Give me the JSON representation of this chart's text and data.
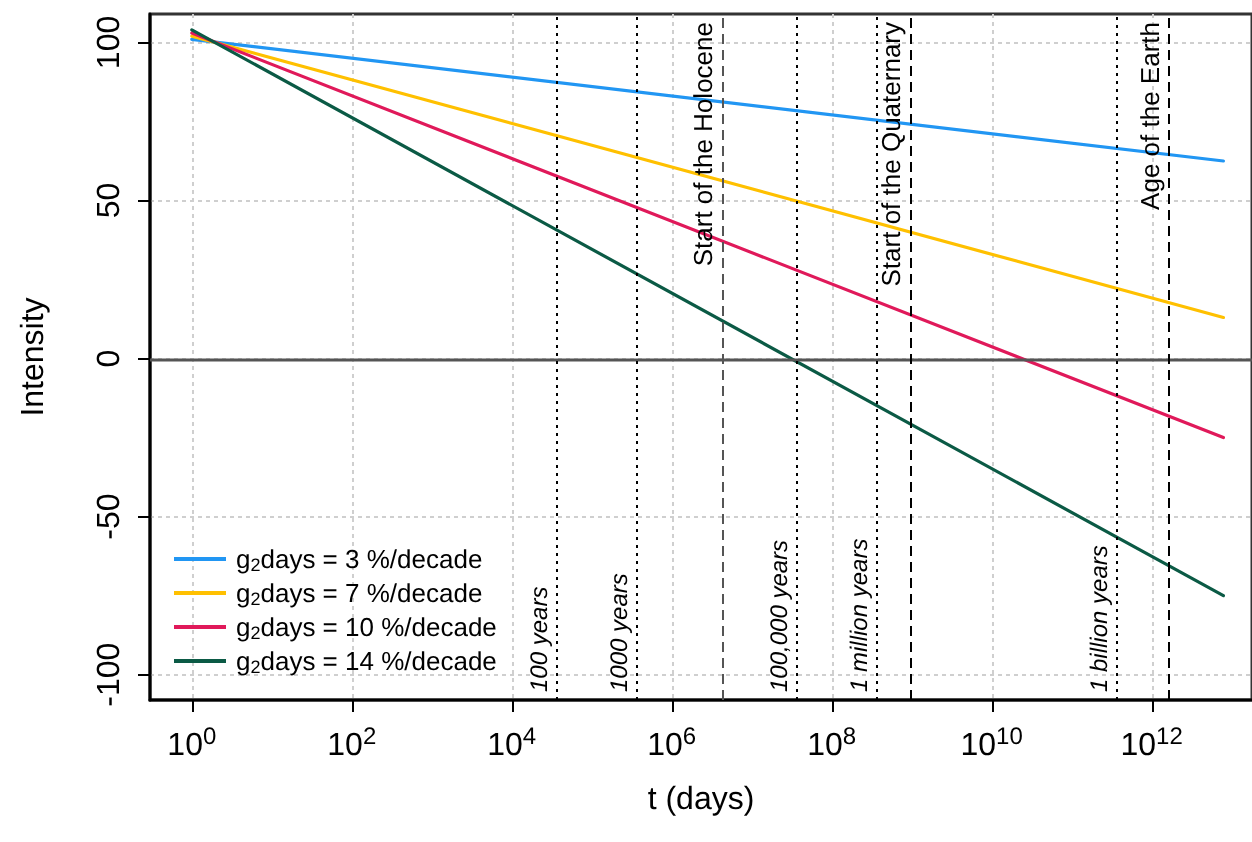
{
  "chart_data": {
    "type": "line",
    "xlabel": "t (days)",
    "ylabel": "Intensity",
    "log": "x",
    "x": [
      1,
      7900000000000.0
    ],
    "series": [
      {
        "name": "g$_{2}$days = 3 %/decade",
        "color": "#2196f3",
        "values": [
          101,
          62.5
        ]
      },
      {
        "name": "g$_{2}$days = 7 %/decade",
        "color": "#ffc000",
        "values": [
          102,
          13
        ]
      },
      {
        "name": "g$_{2}$days = 10 %/decade",
        "color": "#e0195a",
        "values": [
          103,
          -25
        ]
      },
      {
        "name": "g$_{2}$days = 14 %/decade",
        "color": "#0b5a45",
        "values": [
          104,
          -75
        ]
      }
    ],
    "xlim": [
      0.3,
      18000000000000.0
    ],
    "xticks": [
      {
        "value": 1,
        "label": "10$^{0}$"
      },
      {
        "value": 100,
        "label": "10$^{2}$"
      },
      {
        "value": 10000,
        "label": "10$^{4}$"
      },
      {
        "value": 1000000,
        "label": "10$^{6}$"
      },
      {
        "value": 100000000,
        "label": "10$^{8}$"
      },
      {
        "value": 10000000000,
        "label": "10$^{10}$"
      },
      {
        "value": 1000000000000,
        "label": "10$^{12}$"
      }
    ],
    "ylim": [
      -108,
      109
    ],
    "yticks": [
      -100,
      -50,
      0,
      50,
      100
    ],
    "grid": true,
    "legend": "bottom left",
    "marker": "none",
    "line_style": "solid",
    "ref_lines": [
      {
        "axis": "y",
        "value": 0,
        "color": "#555555",
        "line_style": "solid"
      },
      {
        "axis": "x",
        "value": 36525,
        "label": "100 years",
        "color": "#000000",
        "line_style": "dotted"
      },
      {
        "axis": "x",
        "value": 365250,
        "label": "1000 years",
        "color": "#000000",
        "line_style": "dotted"
      },
      {
        "axis": "x",
        "value": 4270000,
        "label": "Start of the Holocene",
        "color": "#555555",
        "line_style": "dashed"
      },
      {
        "axis": "x",
        "value": 36525000,
        "label": "100,000 years",
        "color": "#000000",
        "line_style": "dotted"
      },
      {
        "axis": "x",
        "value": 365250000,
        "label": "1 million years",
        "color": "#000000",
        "line_style": "dotted"
      },
      {
        "axis": "x",
        "value": 942000000,
        "label": "Start of the Quaternary",
        "color": "#000000",
        "line_style": "dashed"
      },
      {
        "axis": "x",
        "value": 365250000000,
        "label": "1 billion years",
        "color": "#000000",
        "line_style": "dotted"
      },
      {
        "axis": "x",
        "value": 1660000000000,
        "label": "Age of the Earth",
        "color": "#000000",
        "line_style": "dashed"
      }
    ]
  }
}
